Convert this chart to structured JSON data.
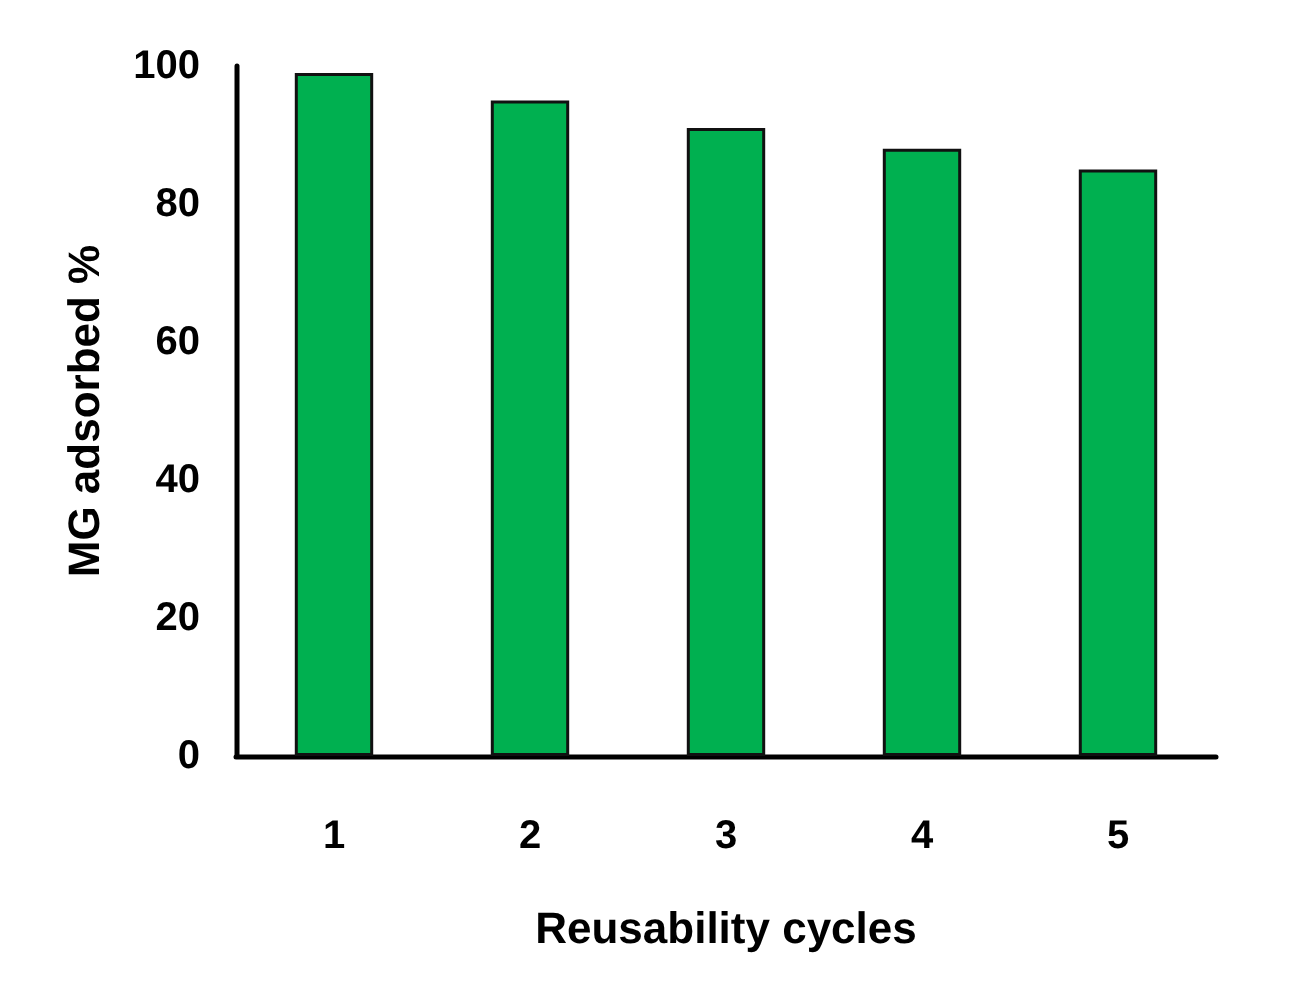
{
  "chart_data": {
    "type": "bar",
    "xlabel": "Reusability cycles",
    "ylabel": "MG adsorbed %",
    "categories": [
      "1",
      "2",
      "3",
      "4",
      "5"
    ],
    "values": [
      99,
      95,
      91,
      88,
      85
    ],
    "color": "#00b050",
    "ylim": [
      0,
      100
    ],
    "yticks": [
      0,
      20,
      40,
      60,
      80,
      100
    ],
    "grid": false
  }
}
